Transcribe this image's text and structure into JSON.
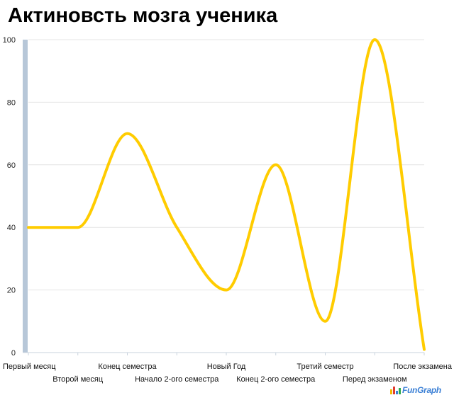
{
  "chart_data": {
    "type": "line",
    "title": "Актиновсть мозга ученика",
    "categories": [
      "Первый месяц",
      "Второй месяц",
      "Конец семестра",
      "Начало 2-ого семестра",
      "Новый Год",
      "Конец 2-ого семестра",
      "Третий семестр",
      "Перед экзаменом",
      "После экзамена"
    ],
    "values": [
      40,
      40,
      70,
      40,
      20,
      60,
      10,
      100,
      1
    ],
    "ylim": [
      0,
      100
    ],
    "yticks": [
      0,
      20,
      40,
      60,
      80,
      100
    ],
    "xlabel": "",
    "ylabel": "",
    "grid": true,
    "line_color": "#ffcc00",
    "grid_color": "#e4e4e4",
    "axis_color": "#b7c7d8"
  },
  "watermark": {
    "text_a": "Fun",
    "text_b": "Graph",
    "bar_colors": [
      "#f5b800",
      "#e03b2e",
      "#3a7fd5",
      "#2da84a"
    ]
  }
}
